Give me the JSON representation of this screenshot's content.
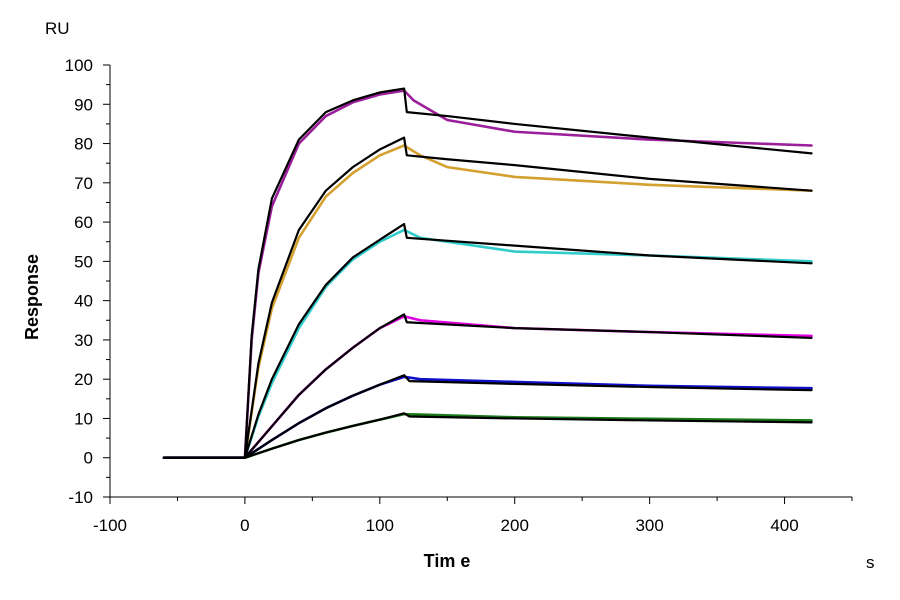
{
  "chart_data": {
    "type": "line",
    "title": "",
    "xlabel": "Tim e",
    "ylabel": "Response",
    "x_unit": "s",
    "y_unit": "RU",
    "xlim": [
      -100,
      450
    ],
    "ylim": [
      -10,
      100
    ],
    "x_ticks": [
      -100,
      0,
      100,
      200,
      300,
      400
    ],
    "y_ticks": [
      -10,
      0,
      10,
      20,
      30,
      40,
      50,
      60,
      70,
      80,
      90,
      100
    ],
    "grid": false,
    "legend": "none",
    "series": [
      {
        "role": "measured",
        "color": "#9b1f9b",
        "points": [
          [
            -60,
            0
          ],
          [
            0,
            0
          ],
          [
            5,
            30
          ],
          [
            10,
            47
          ],
          [
            20,
            64
          ],
          [
            40,
            80
          ],
          [
            60,
            87
          ],
          [
            80,
            90.5
          ],
          [
            100,
            92.5
          ],
          [
            118,
            93.5
          ],
          [
            125,
            91
          ],
          [
            150,
            86
          ],
          [
            200,
            83
          ],
          [
            300,
            81
          ],
          [
            420,
            79.5
          ]
        ]
      },
      {
        "role": "measured",
        "color": "#d4a030",
        "points": [
          [
            -60,
            0
          ],
          [
            0,
            0
          ],
          [
            10,
            23
          ],
          [
            20,
            38
          ],
          [
            40,
            56
          ],
          [
            60,
            66.5
          ],
          [
            80,
            72.5
          ],
          [
            100,
            77
          ],
          [
            118,
            79.5
          ],
          [
            130,
            77
          ],
          [
            150,
            74
          ],
          [
            200,
            71.5
          ],
          [
            300,
            69.5
          ],
          [
            420,
            68
          ]
        ]
      },
      {
        "role": "measured",
        "color": "#33cccc",
        "points": [
          [
            -60,
            0
          ],
          [
            0,
            0
          ],
          [
            10,
            10.5
          ],
          [
            20,
            19
          ],
          [
            40,
            33
          ],
          [
            60,
            43.5
          ],
          [
            80,
            50.5
          ],
          [
            100,
            55
          ],
          [
            118,
            58
          ],
          [
            130,
            56
          ],
          [
            200,
            52.5
          ],
          [
            300,
            51.5
          ],
          [
            420,
            50
          ]
        ]
      },
      {
        "role": "measured",
        "color": "#e000e0",
        "points": [
          [
            -60,
            0
          ],
          [
            0,
            0
          ],
          [
            20,
            8
          ],
          [
            40,
            16
          ],
          [
            60,
            22.5
          ],
          [
            80,
            28
          ],
          [
            100,
            33
          ],
          [
            118,
            36
          ],
          [
            130,
            35
          ],
          [
            200,
            33
          ],
          [
            300,
            32
          ],
          [
            420,
            31
          ]
        ]
      },
      {
        "role": "measured",
        "color": "#1010cc",
        "points": [
          [
            -60,
            0
          ],
          [
            0,
            0
          ],
          [
            20,
            4.5
          ],
          [
            40,
            8.8
          ],
          [
            60,
            12.6
          ],
          [
            80,
            15.8
          ],
          [
            100,
            18.6
          ],
          [
            118,
            20.6
          ],
          [
            130,
            20
          ],
          [
            200,
            19.3
          ],
          [
            300,
            18.3
          ],
          [
            420,
            17.7
          ]
        ]
      },
      {
        "role": "measured",
        "color": "#1a7a1a",
        "points": [
          [
            -60,
            0
          ],
          [
            0,
            0
          ],
          [
            20,
            2.3
          ],
          [
            40,
            4.5
          ],
          [
            60,
            6.4
          ],
          [
            80,
            8.1
          ],
          [
            100,
            9.7
          ],
          [
            118,
            11.1
          ],
          [
            130,
            11
          ],
          [
            200,
            10.3
          ],
          [
            300,
            9.9
          ],
          [
            420,
            9.5
          ]
        ]
      },
      {
        "role": "fit",
        "color": "#000000",
        "points": [
          [
            -60,
            0
          ],
          [
            0,
            0
          ],
          [
            5,
            31
          ],
          [
            10,
            48
          ],
          [
            20,
            66
          ],
          [
            40,
            81
          ],
          [
            60,
            88
          ],
          [
            80,
            91
          ],
          [
            100,
            93
          ],
          [
            118,
            94
          ],
          [
            120,
            88
          ],
          [
            150,
            87
          ],
          [
            200,
            85
          ],
          [
            300,
            81.5
          ],
          [
            420,
            77.5
          ]
        ]
      },
      {
        "role": "fit",
        "color": "#000000",
        "points": [
          [
            -60,
            0
          ],
          [
            0,
            0
          ],
          [
            10,
            24
          ],
          [
            20,
            39.5
          ],
          [
            40,
            58
          ],
          [
            60,
            68
          ],
          [
            80,
            74
          ],
          [
            100,
            78.5
          ],
          [
            118,
            81.5
          ],
          [
            120,
            77
          ],
          [
            150,
            76
          ],
          [
            200,
            74.5
          ],
          [
            300,
            71
          ],
          [
            420,
            68
          ]
        ]
      },
      {
        "role": "fit",
        "color": "#000000",
        "points": [
          [
            -60,
            0
          ],
          [
            0,
            0
          ],
          [
            10,
            11
          ],
          [
            20,
            20
          ],
          [
            40,
            34
          ],
          [
            60,
            44
          ],
          [
            80,
            51
          ],
          [
            100,
            55.5
          ],
          [
            118,
            59.5
          ],
          [
            120,
            56
          ],
          [
            200,
            54
          ],
          [
            300,
            51.5
          ],
          [
            420,
            49.5
          ]
        ]
      },
      {
        "role": "fit",
        "color": "#000000",
        "points": [
          [
            -60,
            0
          ],
          [
            0,
            0
          ],
          [
            20,
            8
          ],
          [
            40,
            16
          ],
          [
            60,
            22.5
          ],
          [
            80,
            28
          ],
          [
            100,
            33
          ],
          [
            118,
            36.5
          ],
          [
            120,
            34.5
          ],
          [
            200,
            33
          ],
          [
            300,
            32
          ],
          [
            420,
            30.5
          ]
        ]
      },
      {
        "role": "fit",
        "color": "#000000",
        "points": [
          [
            -60,
            0
          ],
          [
            0,
            0
          ],
          [
            20,
            4.5
          ],
          [
            40,
            8.8
          ],
          [
            60,
            12.6
          ],
          [
            80,
            15.8
          ],
          [
            100,
            18.6
          ],
          [
            118,
            21
          ],
          [
            122,
            19.5
          ],
          [
            200,
            18.8
          ],
          [
            300,
            18
          ],
          [
            420,
            17.2
          ]
        ]
      },
      {
        "role": "fit",
        "color": "#000000",
        "points": [
          [
            -60,
            0
          ],
          [
            0,
            0
          ],
          [
            20,
            2.3
          ],
          [
            40,
            4.5
          ],
          [
            60,
            6.4
          ],
          [
            80,
            8.1
          ],
          [
            100,
            9.7
          ],
          [
            118,
            11.3
          ],
          [
            122,
            10.5
          ],
          [
            200,
            10
          ],
          [
            300,
            9.5
          ],
          [
            420,
            9
          ]
        ]
      }
    ]
  }
}
